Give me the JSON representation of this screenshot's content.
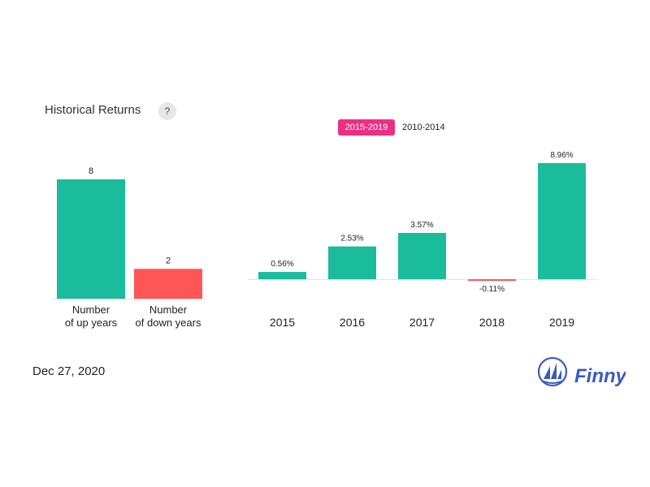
{
  "header": {
    "title": "Historical Returns",
    "help_label": "?"
  },
  "tabs": [
    {
      "label": "2015-2019",
      "active": true
    },
    {
      "label": "2010-2014",
      "active": false
    }
  ],
  "footer": {
    "date": "Dec 27, 2020",
    "brand": "Finny"
  },
  "colors": {
    "up": "#1abc9c",
    "down": "#ff5555",
    "tab_active": "#ec2f85",
    "brand": "#3a5bbf"
  },
  "chart_data": [
    {
      "type": "bar",
      "categories": [
        [
          "Number",
          "of up years"
        ],
        [
          "Number",
          "of down years"
        ]
      ],
      "values": [
        8,
        2
      ],
      "value_labels": [
        "8",
        "2"
      ],
      "ylim": [
        0,
        8
      ]
    },
    {
      "type": "bar",
      "categories": [
        "2015",
        "2016",
        "2017",
        "2018",
        "2019"
      ],
      "values": [
        0.56,
        2.53,
        3.57,
        -0.11,
        8.96
      ],
      "value_labels": [
        "0.56%",
        "2.53%",
        "3.57%",
        "-0.11%",
        "8.96%"
      ],
      "ylim": [
        -0.11,
        8.96
      ]
    }
  ]
}
